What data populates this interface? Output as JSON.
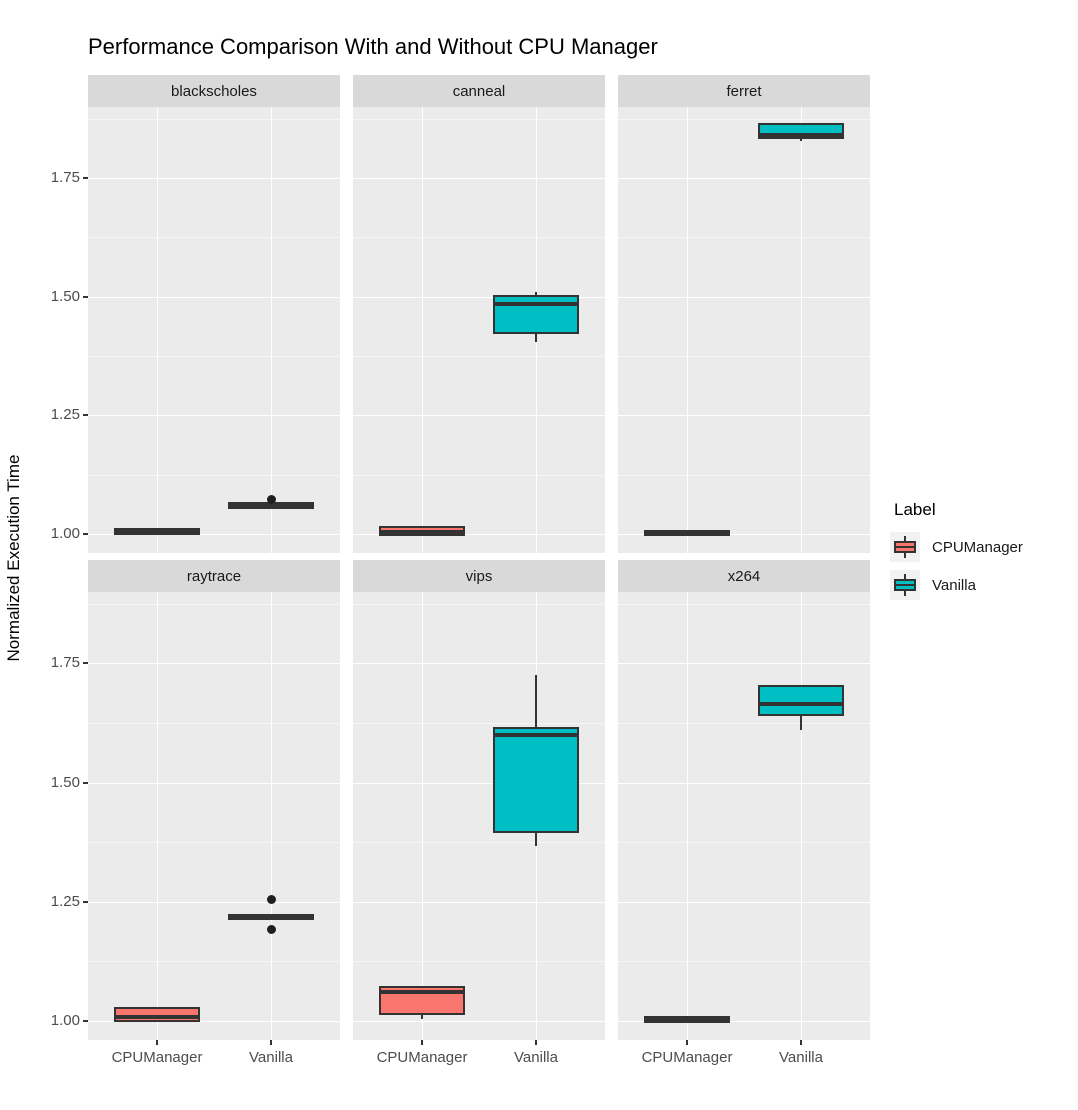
{
  "title": "Performance Comparison With and Without CPU Manager",
  "y_axis": {
    "label": "Normalized Execution Time",
    "tick_labels": [
      "1.00",
      "1.25",
      "1.50",
      "1.75"
    ]
  },
  "x_axis": {
    "categories": [
      "CPUManager",
      "Vanilla"
    ]
  },
  "legend": {
    "title": "Label",
    "items": [
      {
        "label": "CPUManager",
        "color": "#F8766D"
      },
      {
        "label": "Vanilla",
        "color": "#00BFC4"
      }
    ]
  },
  "colors": {
    "cpu_manager": "#F8766D",
    "vanilla": "#00BFC4",
    "panel_bg": "#EBEBEB",
    "strip_bg": "#D9D9D9",
    "grid_major": "#FFFFFF",
    "grid_minor": "rgba(255,255,255,0.55)",
    "box_border": "#333333",
    "tick_text": "#4D4D4D"
  },
  "chart_data": {
    "type": "boxplot",
    "title": "Performance Comparison With and Without CPU Manager",
    "xlabel": "",
    "ylabel": "Normalized Execution Time",
    "ylim": [
      0.96,
      1.9
    ],
    "y_major_ticks": [
      1.0,
      1.25,
      1.5,
      1.75
    ],
    "y_minor_ticks": [
      1.125,
      1.375,
      1.625,
      1.875
    ],
    "categories": [
      "CPUManager",
      "Vanilla"
    ],
    "grid": true,
    "legend_position": "right",
    "facet_layout": {
      "rows": 2,
      "cols": 3
    },
    "facets": [
      {
        "name": "blackscholes",
        "boxes": [
          {
            "group": "CPUManager",
            "whisker_low": 1.003,
            "q1": 1.003,
            "median": 1.005,
            "q3": 1.008,
            "whisker_high": 1.008,
            "outliers": []
          },
          {
            "group": "Vanilla",
            "whisker_low": 1.055,
            "q1": 1.056,
            "median": 1.06,
            "q3": 1.063,
            "whisker_high": 1.063,
            "outliers": [
              1.073
            ]
          }
        ]
      },
      {
        "name": "canneal",
        "boxes": [
          {
            "group": "CPUManager",
            "whisker_low": 1.0,
            "q1": 1.0,
            "median": 1.005,
            "q3": 1.012,
            "whisker_high": 1.012,
            "outliers": []
          },
          {
            "group": "Vanilla",
            "whisker_low": 1.405,
            "q1": 1.425,
            "median": 1.485,
            "q3": 1.5,
            "whisker_high": 1.51,
            "outliers": []
          }
        ]
      },
      {
        "name": "ferret",
        "boxes": [
          {
            "group": "CPUManager",
            "whisker_low": 1.0,
            "q1": 1.0,
            "median": 1.002,
            "q3": 1.004,
            "whisker_high": 1.004,
            "outliers": []
          },
          {
            "group": "Vanilla",
            "whisker_low": 1.828,
            "q1": 1.836,
            "median": 1.84,
            "q3": 1.862,
            "whisker_high": 1.862,
            "outliers": []
          }
        ]
      },
      {
        "name": "raytrace",
        "boxes": [
          {
            "group": "CPUManager",
            "whisker_low": 1.0,
            "q1": 1.002,
            "median": 1.008,
            "q3": 1.026,
            "whisker_high": 1.026,
            "outliers": []
          },
          {
            "group": "Vanilla",
            "whisker_low": 1.216,
            "q1": 1.216,
            "median": 1.218,
            "q3": 1.221,
            "whisker_high": 1.221,
            "outliers": [
              1.254,
              1.191
            ]
          }
        ]
      },
      {
        "name": "vips",
        "boxes": [
          {
            "group": "CPUManager",
            "whisker_low": 1.004,
            "q1": 1.016,
            "median": 1.06,
            "q3": 1.07,
            "whisker_high": 1.07,
            "outliers": []
          },
          {
            "group": "Vanilla",
            "whisker_low": 1.368,
            "q1": 1.398,
            "median": 1.6,
            "q3": 1.612,
            "whisker_high": 1.725,
            "outliers": []
          }
        ]
      },
      {
        "name": "x264",
        "boxes": [
          {
            "group": "CPUManager",
            "whisker_low": 1.0,
            "q1": 1.0,
            "median": 1.003,
            "q3": 1.006,
            "whisker_high": 1.006,
            "outliers": []
          },
          {
            "group": "Vanilla",
            "whisker_low": 1.61,
            "q1": 1.644,
            "median": 1.666,
            "q3": 1.7,
            "whisker_high": 1.7,
            "outliers": []
          }
        ]
      }
    ]
  }
}
